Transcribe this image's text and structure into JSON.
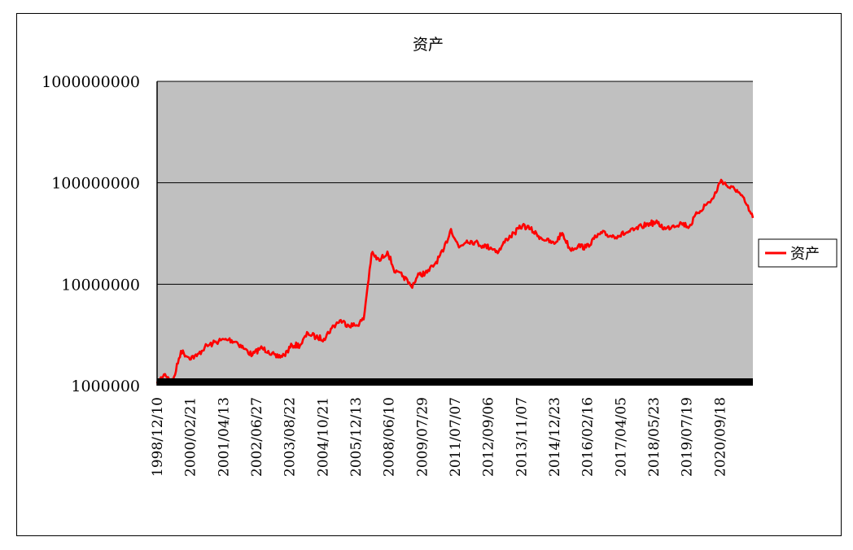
{
  "chart_data": {
    "type": "line",
    "title": "资产",
    "xlabel": "",
    "ylabel": "",
    "yscale": "log",
    "ylim": [
      1000000,
      1000000000
    ],
    "y_ticks": [
      "1000000000",
      "100000000",
      "10000000",
      "1000000"
    ],
    "x_tick_labels": [
      "1998/12/10",
      "2000/02/21",
      "2001/04/13",
      "2002/06/27",
      "2003/08/22",
      "2004/10/21",
      "2005/12/13",
      "2008/06/10",
      "2009/07/29",
      "2011/07/07",
      "2012/09/06",
      "2013/11/07",
      "2014/12/23",
      "2016/02/16",
      "2017/04/05",
      "2018/05/23",
      "2019/07/19",
      "2020/09/18"
    ],
    "grid": true,
    "legend_position": "right",
    "plot_background": "#c0c0c0",
    "line_color": "#ff0000",
    "series": [
      {
        "name": "资产",
        "x": [
          "1998/12/10",
          "1999/03",
          "1999/06",
          "1999/09",
          "1999/12",
          "2000/02/21",
          "2000/06",
          "2000/09",
          "2000/12",
          "2001/04/13",
          "2001/08",
          "2001/12",
          "2002/03",
          "2002/06/27",
          "2002/10",
          "2003/01",
          "2003/04",
          "2003/08/22",
          "2003/12",
          "2004/04",
          "2004/07",
          "2004/10/21",
          "2005/02",
          "2005/06",
          "2005/09",
          "2005/12/13",
          "2006/06",
          "2006/12",
          "2007/06",
          "2007/12",
          "2008/06/10",
          "2008/10",
          "2009/03",
          "2009/07/29",
          "2009/12",
          "2010/06",
          "2010/12",
          "2011/03",
          "2011/07/07",
          "2011/11",
          "2012/03",
          "2012/06",
          "2012/09/06",
          "2012/12",
          "2013/04",
          "2013/08",
          "2013/11/07",
          "2014/02",
          "2014/06",
          "2014/09",
          "2014/12/23",
          "2015/04",
          "2015/08",
          "2015/11",
          "2016/02/16",
          "2016/06",
          "2016/10",
          "2017/01",
          "2017/04/05",
          "2017/08",
          "2017/12",
          "2018/03",
          "2018/05/23",
          "2018/09",
          "2018/12",
          "2019/04",
          "2019/07/19",
          "2019/11",
          "2020/02",
          "2020/06",
          "2020/09/18",
          "2020/11",
          "2021/02",
          "2021/05",
          "2021/08",
          "2021/11"
        ],
        "values": [
          1050000,
          1300000,
          1100000,
          2200000,
          1900000,
          1950000,
          2400000,
          2600000,
          2800000,
          2850000,
          2700000,
          2300000,
          2000000,
          2350000,
          2200000,
          1900000,
          2000000,
          2500000,
          2500000,
          3300000,
          3000000,
          2900000,
          3700000,
          4400000,
          4000000,
          3900000,
          4500000,
          20000000,
          17000000,
          21000000,
          13000000,
          12000000,
          9500000,
          12500000,
          13000000,
          16000000,
          21000000,
          35000000,
          23000000,
          27000000,
          26000000,
          24000000,
          23000000,
          21000000,
          28000000,
          32000000,
          38000000,
          35000000,
          30000000,
          27000000,
          25000000,
          32000000,
          22000000,
          24000000,
          23000000,
          28000000,
          32000000,
          30000000,
          30000000,
          32000000,
          34000000,
          37000000,
          40000000,
          40000000,
          35000000,
          38000000,
          40000000,
          37000000,
          50000000,
          60000000,
          70000000,
          107000000,
          90000000,
          85000000,
          65000000,
          45000000
        ]
      }
    ]
  }
}
